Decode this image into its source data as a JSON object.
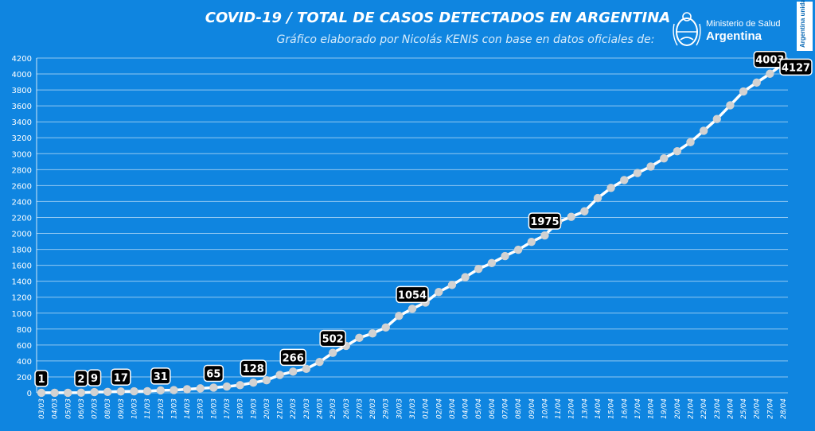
{
  "header": {
    "title": "COVID-19  /  TOTAL DE CASOS DETECTADOS EN ARGENTINA",
    "subtitle": "Gráfico elaborado por Nicolás KENIS con base en datos oficiales de:",
    "logo_line1": "Ministerio de Salud",
    "logo_line2": "Argentina",
    "side_tag": "Argentina unida"
  },
  "colors": {
    "background": "#0f85e0",
    "line": "#ffffff",
    "marker": "#d2d2d2",
    "label_bg": "#000000",
    "label_text": "#ffffff"
  },
  "chart_data": {
    "type": "line",
    "title": "COVID-19  /  TOTAL DE CASOS DETECTADOS EN ARGENTINA",
    "xlabel": "",
    "ylabel": "",
    "ylim": [
      0,
      4200
    ],
    "yticks": [
      0,
      200,
      400,
      600,
      800,
      1000,
      1200,
      1400,
      1600,
      1800,
      2000,
      2200,
      2400,
      2600,
      2800,
      3000,
      3200,
      3400,
      3600,
      3800,
      4000,
      4200
    ],
    "grid": true,
    "x": [
      "03/03",
      "04/03",
      "05/03",
      "06/03",
      "07/03",
      "08/03",
      "09/03",
      "10/03",
      "11/03",
      "12/03",
      "13/03",
      "14/03",
      "15/03",
      "16/03",
      "17/03",
      "18/03",
      "19/03",
      "20/03",
      "21/03",
      "22/03",
      "23/03",
      "24/03",
      "25/03",
      "26/03",
      "27/03",
      "28/03",
      "29/03",
      "30/03",
      "31/03",
      "01/04",
      "02/04",
      "03/04",
      "04/04",
      "05/04",
      "06/04",
      "07/04",
      "08/04",
      "09/04",
      "10/04",
      "11/04",
      "12/04",
      "13/04",
      "14/04",
      "15/04",
      "16/04",
      "17/04",
      "18/04",
      "19/04",
      "20/04",
      "21/04",
      "22/04",
      "23/04",
      "24/04",
      "25/04",
      "26/04",
      "27/04",
      "28/04"
    ],
    "series": [
      {
        "values": [
          1,
          1,
          1,
          2,
          9,
          12,
          17,
          19,
          21,
          31,
          34,
          45,
          56,
          65,
          79,
          97,
          128,
          158,
          225,
          266,
          301,
          387,
          502,
          589,
          690,
          745,
          820,
          966,
          1054,
          1133,
          1265,
          1353,
          1451,
          1554,
          1628,
          1715,
          1795,
          1894,
          1975,
          2142,
          2208,
          2277,
          2443,
          2571,
          2669,
          2758,
          2839,
          2941,
          3031,
          3144,
          3288,
          3435,
          3607,
          3780,
          3892,
          4003,
          4127
        ]
      }
    ],
    "annotations": [
      {
        "x": "03/03",
        "label": "1"
      },
      {
        "x": "06/03",
        "label": "2"
      },
      {
        "x": "07/03",
        "label": "9"
      },
      {
        "x": "09/03",
        "label": "17"
      },
      {
        "x": "12/03",
        "label": "31"
      },
      {
        "x": "16/03",
        "label": "65"
      },
      {
        "x": "19/03",
        "label": "128"
      },
      {
        "x": "22/03",
        "label": "266"
      },
      {
        "x": "25/03",
        "label": "502"
      },
      {
        "x": "31/03",
        "label": "1054"
      },
      {
        "x": "10/04",
        "label": "1975"
      },
      {
        "x": "27/04",
        "label": "4003"
      },
      {
        "x": "28/04",
        "label": "4127"
      }
    ]
  }
}
